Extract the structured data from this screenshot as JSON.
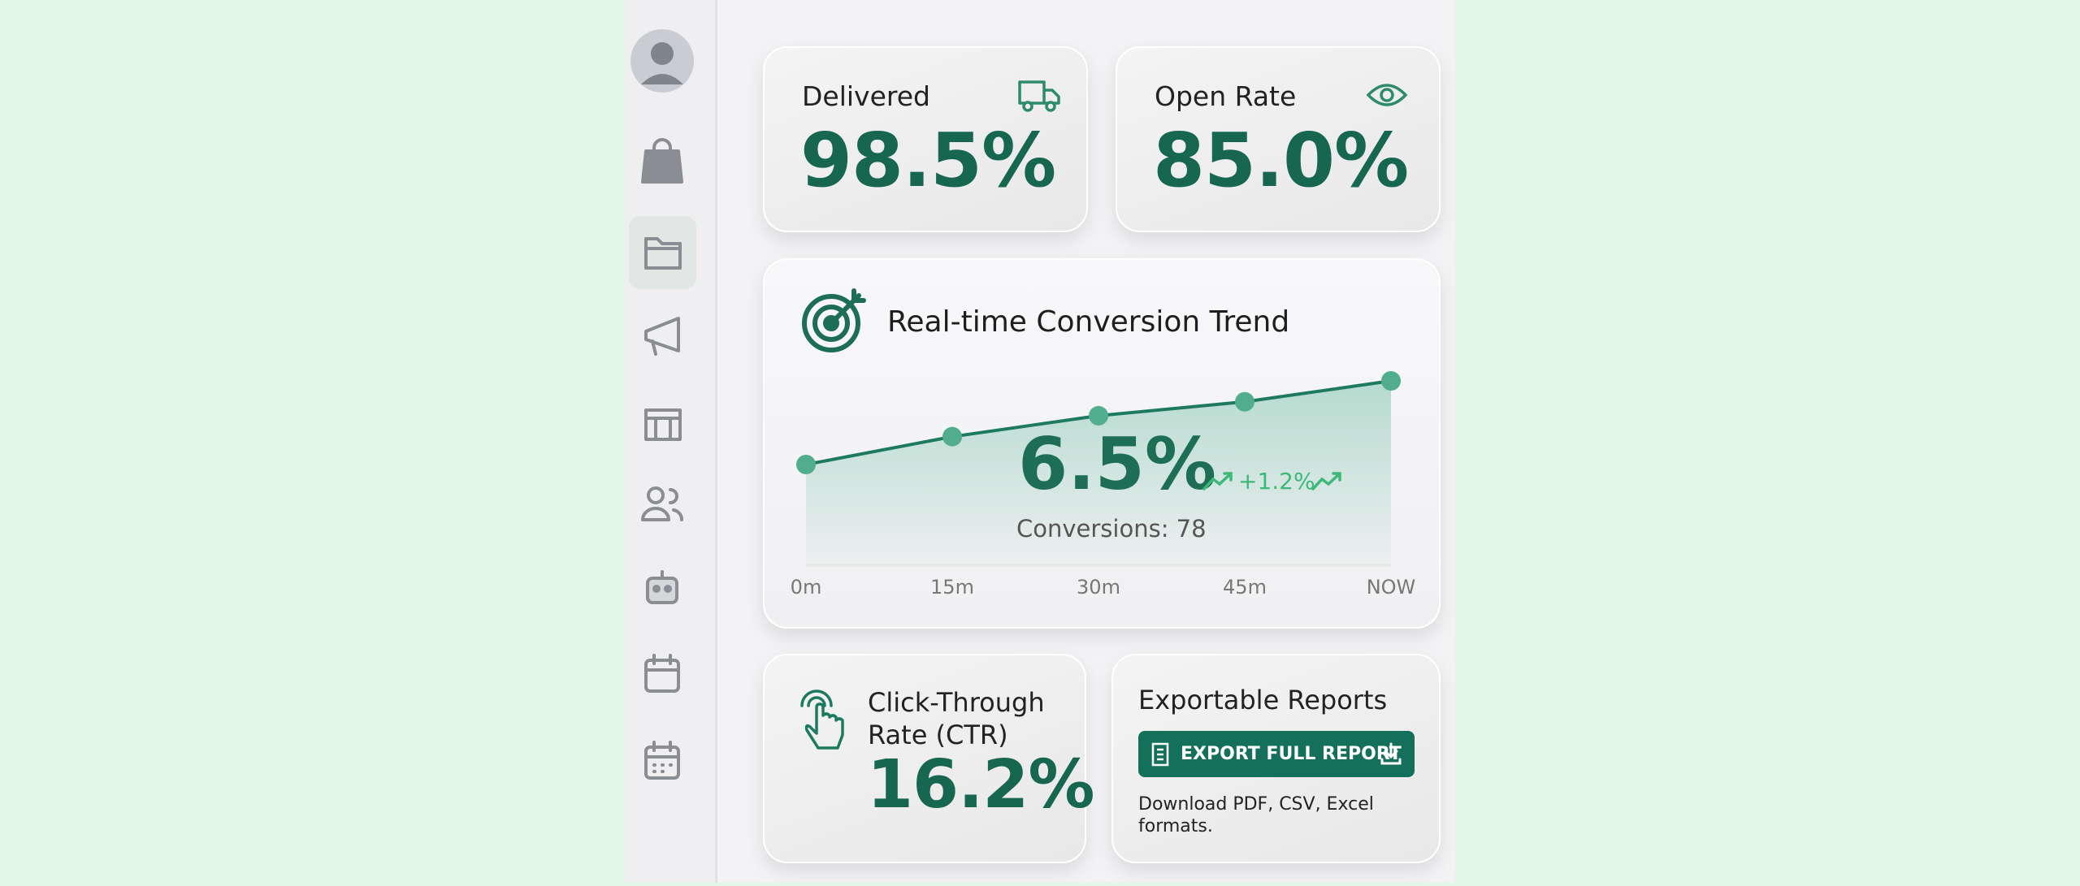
{
  "cards": [
    {
      "label": "Delivered",
      "value": "98.5%"
    },
    {
      "label": "Open Rate",
      "value": "85.0%"
    }
  ],
  "chart_data": {
    "type": "line",
    "title": "Real-time Conversion Trend",
    "categories": [
      "0m",
      "15m",
      "30m",
      "45m",
      "NOW"
    ],
    "values": [
      5.3,
      5.7,
      6.0,
      6.2,
      6.5
    ],
    "color": "#1d7a5f",
    "current": "6.5%",
    "change": "+1.2%",
    "subtitle": "Conversions: 78"
  },
  "ctr": {
    "label": "Click-Through Rate (CTR)",
    "value": "16.2%"
  },
  "export": {
    "title": "Exportable Reports",
    "button": "EXPORT FULL REPORT",
    "description": "Download PDF, CSV, Excel formats."
  }
}
